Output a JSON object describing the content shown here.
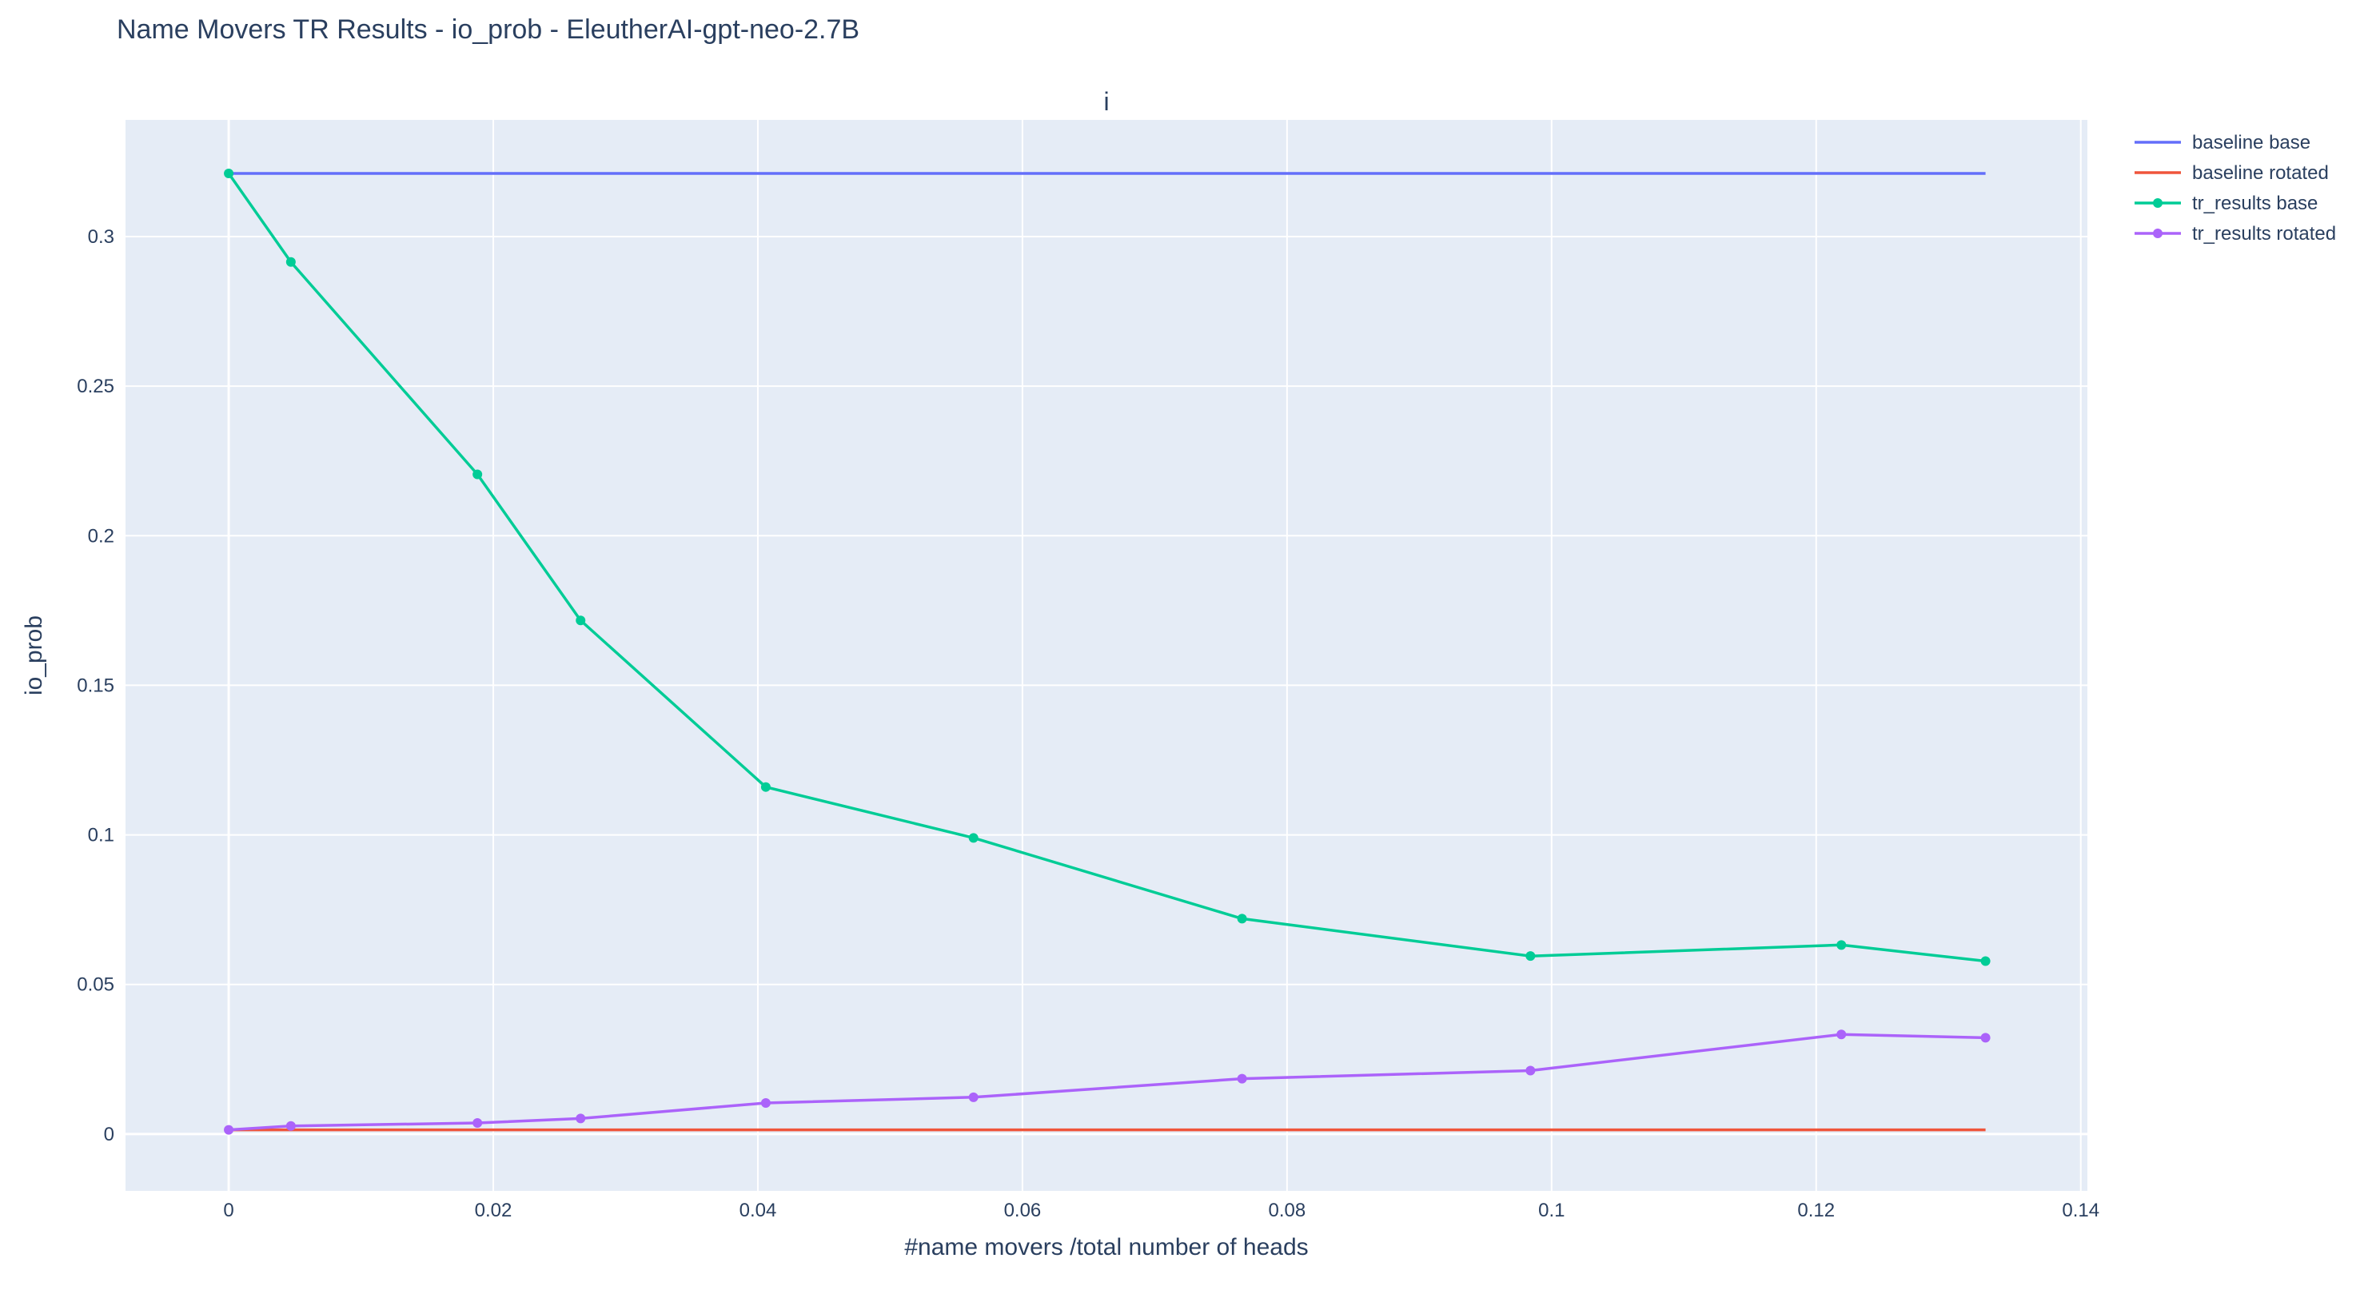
{
  "chart_data": {
    "type": "line",
    "title": "Name Movers TR Results - io_prob - EleutherAI-gpt-neo-2.7B",
    "subplot_title": "i",
    "xlabel": "#name movers /total number of heads",
    "ylabel": "io_prob",
    "xlim": [
      -0.0078,
      0.1405
    ],
    "ylim": [
      -0.019,
      0.339
    ],
    "x_ticks": [
      0,
      0.02,
      0.04,
      0.06,
      0.08,
      0.1,
      0.12,
      0.14
    ],
    "x_tick_labels": [
      "0",
      "0.02",
      "0.04",
      "0.06",
      "0.08",
      "0.1",
      "0.12",
      "0.14"
    ],
    "y_ticks": [
      0,
      0.05,
      0.1,
      0.15,
      0.2,
      0.25,
      0.3
    ],
    "y_tick_labels": [
      "0",
      "0.05",
      "0.1",
      "0.15",
      "0.2",
      "0.25",
      "0.3"
    ],
    "grid": true,
    "legend_position": "top-right outside",
    "background": "#e5ecf6",
    "series": [
      {
        "name": "baseline base",
        "color": "#636efa",
        "markers": false,
        "x": [
          0,
          0.1328
        ],
        "y": [
          0.3211,
          0.3211
        ]
      },
      {
        "name": "baseline rotated",
        "color": "#ef553b",
        "markers": false,
        "x": [
          0,
          0.1328
        ],
        "y": [
          0.0014,
          0.0014
        ]
      },
      {
        "name": "tr_results base",
        "color": "#00cc96",
        "markers": true,
        "x": [
          0,
          0.0047,
          0.0188,
          0.0266,
          0.0406,
          0.0563,
          0.0766,
          0.0984,
          0.1219,
          0.1328
        ],
        "y": [
          0.3211,
          0.2915,
          0.2205,
          0.1717,
          0.116,
          0.099,
          0.072,
          0.0595,
          0.0632,
          0.0578
        ]
      },
      {
        "name": "tr_results rotated",
        "color": "#ab63fa",
        "markers": true,
        "x": [
          0,
          0.0047,
          0.0188,
          0.0266,
          0.0406,
          0.0563,
          0.0766,
          0.0984,
          0.1219,
          0.1328
        ],
        "y": [
          0.0014,
          0.0027,
          0.0037,
          0.0052,
          0.0104,
          0.0123,
          0.0185,
          0.0212,
          0.0333,
          0.0322
        ]
      }
    ]
  }
}
